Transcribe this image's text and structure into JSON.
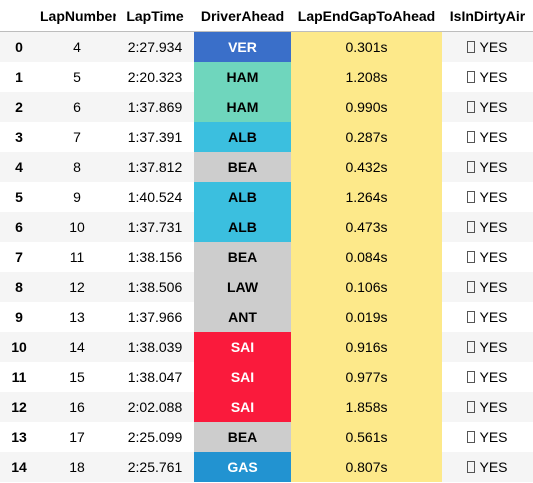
{
  "columns": [
    "LapNumber",
    "LapTime",
    "DriverAhead",
    "LapEndGapToAhead",
    "IsInDirtyAir"
  ],
  "rows": [
    {
      "index": "0",
      "lap": "4",
      "time": "2:27.934",
      "driver": "VER",
      "driver_bg": "#3a6fc9",
      "driver_fg": "#ffffff",
      "gap": "0.301s",
      "dirty": "YES"
    },
    {
      "index": "1",
      "lap": "5",
      "time": "2:20.323",
      "driver": "HAM",
      "driver_bg": "#6fd6bd",
      "driver_fg": "#000000",
      "gap": "1.208s",
      "dirty": "YES"
    },
    {
      "index": "2",
      "lap": "6",
      "time": "1:37.869",
      "driver": "HAM",
      "driver_bg": "#6fd6bd",
      "driver_fg": "#000000",
      "gap": "0.990s",
      "dirty": "YES"
    },
    {
      "index": "3",
      "lap": "7",
      "time": "1:37.391",
      "driver": "ALB",
      "driver_bg": "#3bbfdf",
      "driver_fg": "#000000",
      "gap": "0.287s",
      "dirty": "YES"
    },
    {
      "index": "4",
      "lap": "8",
      "time": "1:37.812",
      "driver": "BEA",
      "driver_bg": "#cdcdcd",
      "driver_fg": "#000000",
      "gap": "0.432s",
      "dirty": "YES"
    },
    {
      "index": "5",
      "lap": "9",
      "time": "1:40.524",
      "driver": "ALB",
      "driver_bg": "#3bbfdf",
      "driver_fg": "#000000",
      "gap": "1.264s",
      "dirty": "YES"
    },
    {
      "index": "6",
      "lap": "10",
      "time": "1:37.731",
      "driver": "ALB",
      "driver_bg": "#3bbfdf",
      "driver_fg": "#000000",
      "gap": "0.473s",
      "dirty": "YES"
    },
    {
      "index": "7",
      "lap": "11",
      "time": "1:38.156",
      "driver": "BEA",
      "driver_bg": "#cdcdcd",
      "driver_fg": "#000000",
      "gap": "0.084s",
      "dirty": "YES"
    },
    {
      "index": "8",
      "lap": "12",
      "time": "1:38.506",
      "driver": "LAW",
      "driver_bg": "#cdcdcd",
      "driver_fg": "#000000",
      "gap": "0.106s",
      "dirty": "YES"
    },
    {
      "index": "9",
      "lap": "13",
      "time": "1:37.966",
      "driver": "ANT",
      "driver_bg": "#cdcdcd",
      "driver_fg": "#000000",
      "gap": "0.019s",
      "dirty": "YES"
    },
    {
      "index": "10",
      "lap": "14",
      "time": "1:38.039",
      "driver": "SAI",
      "driver_bg": "#fa1a3c",
      "driver_fg": "#ffffff",
      "gap": "0.916s",
      "dirty": "YES"
    },
    {
      "index": "11",
      "lap": "15",
      "time": "1:38.047",
      "driver": "SAI",
      "driver_bg": "#fa1a3c",
      "driver_fg": "#ffffff",
      "gap": "0.977s",
      "dirty": "YES"
    },
    {
      "index": "12",
      "lap": "16",
      "time": "2:02.088",
      "driver": "SAI",
      "driver_bg": "#fa1a3c",
      "driver_fg": "#ffffff",
      "gap": "1.858s",
      "dirty": "YES"
    },
    {
      "index": "13",
      "lap": "17",
      "time": "2:25.099",
      "driver": "BEA",
      "driver_bg": "#cdcdcd",
      "driver_fg": "#000000",
      "gap": "0.561s",
      "dirty": "YES"
    },
    {
      "index": "14",
      "lap": "18",
      "time": "2:25.761",
      "driver": "GAS",
      "driver_bg": "#2293d1",
      "driver_fg": "#ffffff",
      "gap": "0.807s",
      "dirty": "YES"
    }
  ],
  "colors": {
    "gap_highlight": "#fde98a",
    "stripe": "#f5f5f5"
  }
}
